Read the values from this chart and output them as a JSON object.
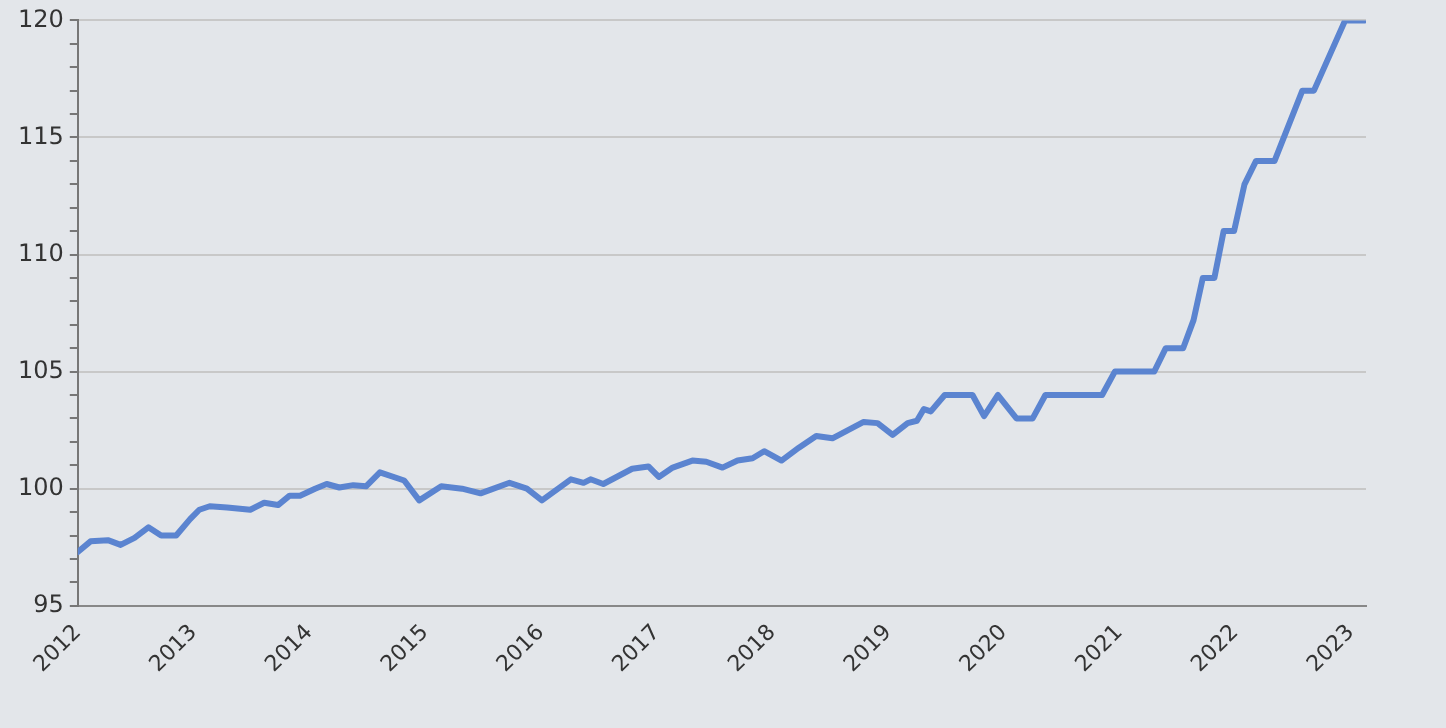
{
  "chart_data": {
    "type": "line",
    "grid": "y",
    "marker": "none",
    "line_style": "solid",
    "legend": false,
    "xlim": [
      2012,
      2023.13
    ],
    "xticks": [
      2012,
      2013,
      2014,
      2015,
      2016,
      2017,
      2018,
      2019,
      2020,
      2021,
      2022,
      2023
    ],
    "ylim": [
      95,
      120
    ],
    "yticks": [
      95,
      {
        "value": 96,
        "label": null
      },
      {
        "value": 97,
        "label": null
      },
      {
        "value": 98,
        "label": null
      },
      {
        "value": 99,
        "label": null
      },
      100,
      {
        "value": 101,
        "label": null
      },
      {
        "value": 102,
        "label": null
      },
      {
        "value": 103,
        "label": null
      },
      {
        "value": 104,
        "label": null
      },
      105,
      {
        "value": 106,
        "label": null
      },
      {
        "value": 107,
        "label": null
      },
      {
        "value": 108,
        "label": null
      },
      {
        "value": 109,
        "label": null
      },
      110,
      {
        "value": 111,
        "label": null
      },
      {
        "value": 112,
        "label": null
      },
      {
        "value": 113,
        "label": null
      },
      {
        "value": 114,
        "label": null
      },
      115,
      {
        "value": 116,
        "label": null
      },
      {
        "value": 117,
        "label": null
      },
      {
        "value": 118,
        "label": null
      },
      {
        "value": 119,
        "label": null
      },
      120
    ],
    "series": [
      {
        "color": "#5b84d0",
        "x": [
          2012.0,
          2012.11,
          2012.26,
          2012.37,
          2012.49,
          2012.61,
          2012.72,
          2012.85,
          2012.97,
          2013.05,
          2013.14,
          2013.29,
          2013.49,
          2013.61,
          2013.73,
          2013.83,
          2013.92,
          2014.05,
          2014.15,
          2014.26,
          2014.38,
          2014.49,
          2014.61,
          2014.82,
          2014.95,
          2015.14,
          2015.32,
          2015.48,
          2015.73,
          2015.88,
          2016.01,
          2016.26,
          2016.37,
          2016.43,
          2016.54,
          2016.79,
          2016.93,
          2017.02,
          2017.14,
          2017.31,
          2017.43,
          2017.57,
          2017.7,
          2017.83,
          2017.93,
          2018.08,
          2018.23,
          2018.38,
          2018.52,
          2018.79,
          2018.91,
          2019.04,
          2019.17,
          2019.25,
          2019.31,
          2019.37,
          2019.49,
          2019.73,
          2019.83,
          2019.95,
          2020.11,
          2020.25,
          2020.36,
          2020.85,
          2020.96,
          2021.3,
          2021.4,
          2021.55,
          2021.64,
          2021.72,
          2021.82,
          2021.9,
          2021.99,
          2022.08,
          2022.18,
          2022.34,
          2022.58,
          2022.68,
          2022.95,
          2023.12
        ],
        "values": [
          97.3,
          97.75,
          97.8,
          97.6,
          97.9,
          98.35,
          98.0,
          98.0,
          98.7,
          99.1,
          99.25,
          99.2,
          99.1,
          99.4,
          99.3,
          99.7,
          99.7,
          100.0,
          100.2,
          100.05,
          100.15,
          100.1,
          100.7,
          100.35,
          99.5,
          100.1,
          100.0,
          99.8,
          100.25,
          100.0,
          99.5,
          100.4,
          100.25,
          100.4,
          100.2,
          100.85,
          100.95,
          100.5,
          100.9,
          101.2,
          101.15,
          100.9,
          101.2,
          101.3,
          101.6,
          101.2,
          101.75,
          102.25,
          102.15,
          102.85,
          102.8,
          102.3,
          102.8,
          102.9,
          103.4,
          103.3,
          104.0,
          104.0,
          103.1,
          104.0,
          103.0,
          103.0,
          104.0,
          104.0,
          105.0,
          105.0,
          106.0,
          106.0,
          107.2,
          109.0,
          109.0,
          111.0,
          111.0,
          113.0,
          114.0,
          114.0,
          117.0,
          117.0,
          120.0,
          120.0
        ]
      }
    ]
  }
}
